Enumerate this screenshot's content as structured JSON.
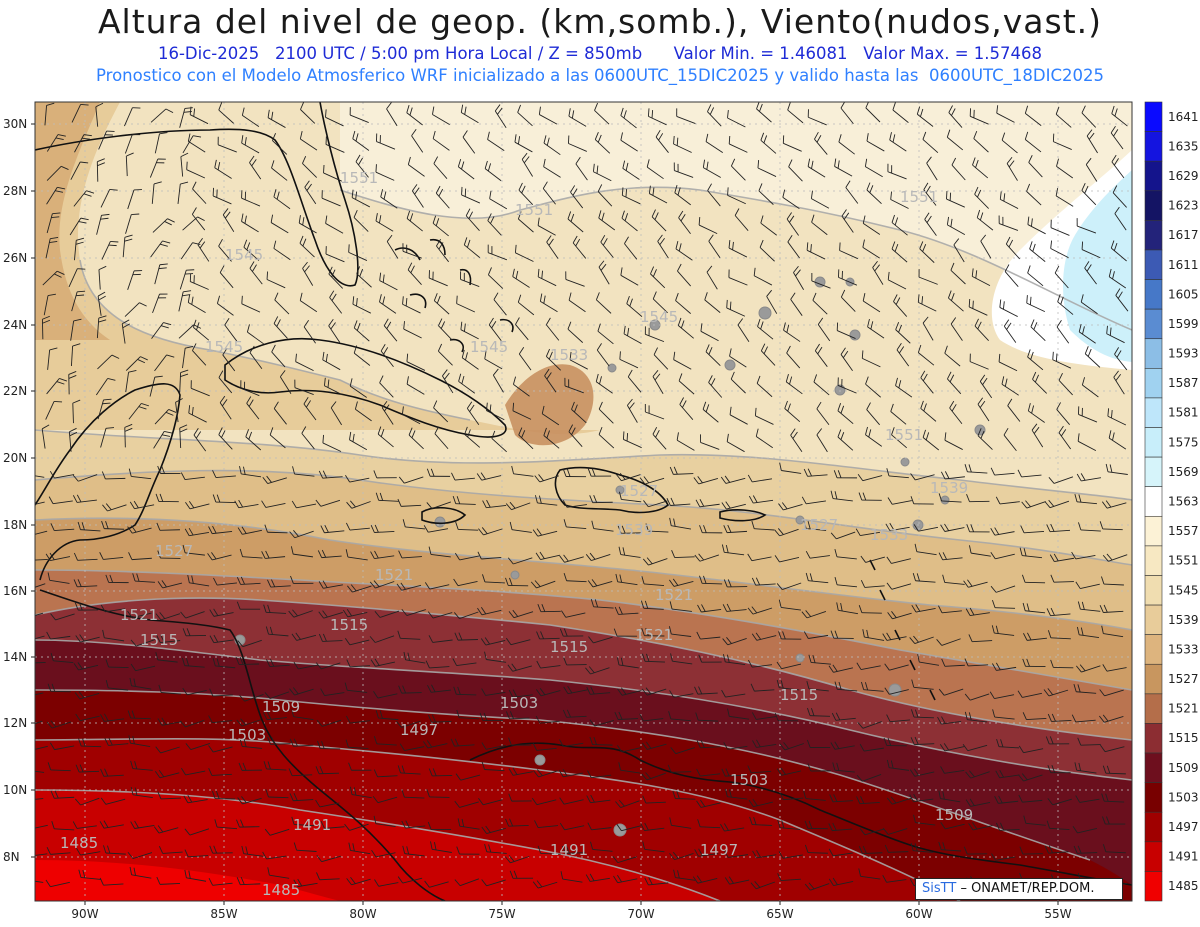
{
  "title": "Altura del nivel de geop. (km,somb.), Viento(nudos,vast.)",
  "subtitle1": "16-Dic-2025   2100 UTC / 5:00 pm Hora Local / Z = 850mb      Valor Min. = 1.46081   Valor Max. = 1.57468",
  "subtitle2": "Pronostico con el Modelo Atmosferico WRF inicializado a las 0600UTC_15DIC2025 y valido hasta las  0600UTC_18DIC2025",
  "lat_labels": [
    "30N",
    "28N",
    "26N",
    "24N",
    "22N",
    "20N",
    "18N",
    "16N",
    "14N",
    "12N",
    "10N",
    "8N"
  ],
  "lon_labels": [
    "90W",
    "85W",
    "80W",
    "75W",
    "70W",
    "65W",
    "60W",
    "55W"
  ],
  "colorbar_levels": [
    "1641",
    "1635",
    "1629",
    "1623",
    "1617",
    "1611",
    "1605",
    "1599",
    "1593",
    "1587",
    "1581",
    "1575",
    "1569",
    "1563",
    "1557",
    "1551",
    "1545",
    "1539",
    "1533",
    "1527",
    "1521",
    "1515",
    "1509",
    "1503",
    "1497",
    "1491",
    "1485"
  ],
  "colorbar_colors": [
    "#0a0aff",
    "#1414e0",
    "#14148c",
    "#141464",
    "#23237a",
    "#3c5ab4",
    "#4678c8",
    "#5a8cd2",
    "#8cbee6",
    "#a0d2f0",
    "#bee6fa",
    "#c8eefa",
    "#d6f4fa",
    "#ffffff",
    "#fcf2d6",
    "#f7e8c2",
    "#f0ddb0",
    "#e8cc9a",
    "#ddb47e",
    "#c8965f",
    "#b46e4a",
    "#8c2d32",
    "#6e0f1e",
    "#780000",
    "#a00000",
    "#c80000",
    "#f00000"
  ],
  "contour_labels": [
    {
      "text": "1551"
    },
    {
      "text": "1551"
    },
    {
      "text": "1551"
    },
    {
      "text": "1545"
    },
    {
      "text": "1545"
    },
    {
      "text": "1539"
    },
    {
      "text": "1545"
    },
    {
      "text": "1551"
    },
    {
      "text": "1545"
    },
    {
      "text": "1533"
    },
    {
      "text": "1527"
    },
    {
      "text": "1521"
    },
    {
      "text": "1521"
    },
    {
      "text": "1521"
    },
    {
      "text": "1515"
    },
    {
      "text": "1515"
    },
    {
      "text": "1515"
    },
    {
      "text": "1509"
    },
    {
      "text": "1503"
    },
    {
      "text": "1497"
    },
    {
      "text": "1503"
    },
    {
      "text": "1503"
    },
    {
      "text": "1515"
    },
    {
      "text": "1509"
    },
    {
      "text": "1491"
    },
    {
      "text": "1491"
    },
    {
      "text": "1497"
    },
    {
      "text": "1485"
    },
    {
      "text": "1485"
    },
    {
      "text": "1539"
    },
    {
      "text": "1527"
    },
    {
      "text": "1533"
    },
    {
      "text": "1521"
    },
    {
      "text": "1527"
    }
  ],
  "footer": {
    "brand": "SisTT",
    "text": "– ONAMET/REP.DOM."
  }
}
